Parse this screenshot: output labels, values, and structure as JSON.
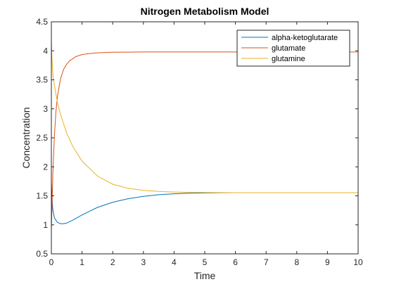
{
  "chart_data": {
    "type": "line",
    "title": "Nitrogen Metabolism Model",
    "xlabel": "Time",
    "ylabel": "Concentration",
    "xlim": [
      0,
      10
    ],
    "ylim": [
      0.5,
      4.5
    ],
    "xticks": [
      0,
      1,
      2,
      3,
      4,
      5,
      6,
      7,
      8,
      9,
      10
    ],
    "yticks": [
      0.5,
      1,
      1.5,
      2,
      2.5,
      3,
      3.5,
      4,
      4.5
    ],
    "grid": false,
    "legend_position": "top-right",
    "series": [
      {
        "name": "alpha-ketoglutarate",
        "color": "#0072BD",
        "x": [
          0,
          0.02,
          0.05,
          0.1,
          0.2,
          0.3,
          0.4,
          0.5,
          0.7,
          1,
          1.5,
          2,
          2.5,
          3,
          3.5,
          4,
          4.5,
          5,
          5.5,
          6,
          7,
          8,
          9,
          10
        ],
        "y": [
          1.75,
          1.45,
          1.25,
          1.12,
          1.04,
          1.02,
          1.02,
          1.03,
          1.08,
          1.17,
          1.3,
          1.39,
          1.45,
          1.49,
          1.52,
          1.535,
          1.545,
          1.55,
          1.553,
          1.555,
          1.555,
          1.555,
          1.555,
          1.555
        ]
      },
      {
        "name": "glutamate",
        "color": "#D95319",
        "x": [
          0,
          0.02,
          0.05,
          0.1,
          0.15,
          0.2,
          0.3,
          0.4,
          0.5,
          0.6,
          0.8,
          1,
          1.2,
          1.5,
          2,
          2.5,
          3,
          4,
          5,
          6,
          7,
          8,
          9,
          10
        ],
        "y": [
          0.9,
          1.3,
          1.9,
          2.55,
          2.95,
          3.22,
          3.52,
          3.68,
          3.77,
          3.83,
          3.9,
          3.935,
          3.95,
          3.965,
          3.975,
          3.978,
          3.98,
          3.98,
          3.98,
          3.98,
          3.98,
          3.98,
          3.98,
          3.98
        ]
      },
      {
        "name": "glutamine",
        "color": "#EDB120",
        "x": [
          0,
          0.02,
          0.05,
          0.1,
          0.2,
          0.3,
          0.5,
          0.7,
          1,
          1.5,
          2,
          2.5,
          3,
          3.5,
          4,
          4.5,
          5,
          5.5,
          6,
          7,
          8,
          9,
          10
        ],
        "y": [
          4.2,
          3.85,
          3.6,
          3.4,
          3.1,
          2.9,
          2.58,
          2.35,
          2.1,
          1.84,
          1.7,
          1.63,
          1.595,
          1.575,
          1.565,
          1.56,
          1.557,
          1.556,
          1.555,
          1.555,
          1.555,
          1.555,
          1.555
        ]
      }
    ]
  }
}
